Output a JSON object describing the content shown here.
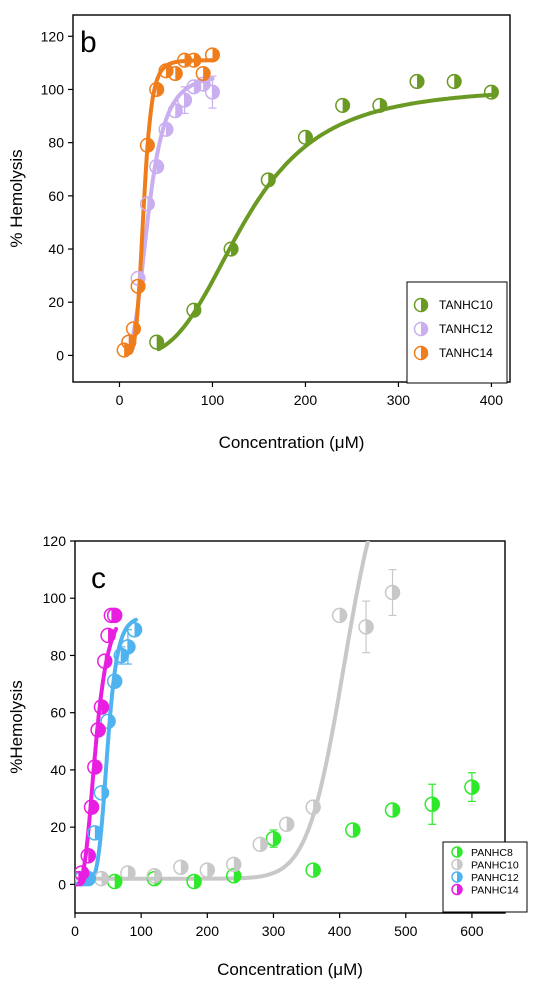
{
  "chart_data": [
    {
      "type": "scatter",
      "panel_label": "b",
      "xlabel": "Concentration (μM)",
      "ylabel": "% Hemolysis",
      "xlim": [
        -50,
        420
      ],
      "ylim": [
        -10,
        128
      ],
      "xticks": [
        0,
        100,
        200,
        300,
        400
      ],
      "yticks": [
        0,
        20,
        40,
        60,
        80,
        100,
        120
      ],
      "legend_position": "right-middle",
      "series": [
        {
          "name": "TANHC10",
          "color": "#6a9a24",
          "points": [
            [
              40,
              5
            ],
            [
              80,
              17
            ],
            [
              120,
              40
            ],
            [
              160,
              66
            ],
            [
              200,
              82
            ],
            [
              240,
              94
            ],
            [
              280,
              94
            ],
            [
              320,
              103
            ],
            [
              360,
              103
            ],
            [
              400,
              99
            ]
          ],
          "fit": {
            "x0": 42,
            "x1": 400,
            "bottom": 0,
            "top": 101,
            "ec50": 135,
            "hill": 3.2
          }
        },
        {
          "name": "TANHC12",
          "color": "#c9aef0",
          "points": [
            [
              10,
              5
            ],
            [
              20,
              29
            ],
            [
              30,
              57
            ],
            [
              40,
              71
            ],
            [
              50,
              85
            ],
            [
              60,
              92
            ],
            [
              70,
              96
            ],
            [
              80,
              101
            ],
            [
              90,
              102
            ],
            [
              100,
              99
            ]
          ],
          "error": [
            0,
            0,
            0,
            0,
            0,
            0,
            5,
            0,
            0,
            6
          ],
          "fit": {
            "x0": 10,
            "x1": 100,
            "bottom": 0,
            "top": 106,
            "ec50": 31,
            "hill": 3.4
          }
        },
        {
          "name": "TANHC14",
          "color": "#f07d1c",
          "points": [
            [
              5,
              2
            ],
            [
              10,
              5
            ],
            [
              15,
              10
            ],
            [
              20,
              26
            ],
            [
              30,
              79
            ],
            [
              40,
              100
            ],
            [
              50,
              107
            ],
            [
              60,
              106
            ],
            [
              70,
              111
            ],
            [
              80,
              111
            ],
            [
              90,
              106
            ],
            [
              100,
              113
            ]
          ],
          "fit": {
            "x0": 12,
            "x1": 100,
            "bottom": 0,
            "top": 111,
            "ec50": 26,
            "hill": 6
          }
        }
      ]
    },
    {
      "type": "scatter",
      "panel_label": "c",
      "xlabel": "Concentration (μM)",
      "ylabel": "%Hemolysis",
      "xlim": [
        0,
        650
      ],
      "ylim": [
        -10,
        120
      ],
      "xticks": [
        0,
        100,
        200,
        300,
        400,
        500,
        600
      ],
      "yticks": [
        0,
        20,
        40,
        60,
        80,
        100,
        120
      ],
      "legend_position": "bottom-right",
      "series": [
        {
          "name": "PANHC8",
          "color": "#2ee82a",
          "points": [
            [
              60,
              1
            ],
            [
              120,
              2
            ],
            [
              180,
              1
            ],
            [
              240,
              3
            ],
            [
              300,
              16
            ],
            [
              360,
              5
            ],
            [
              420,
              19
            ],
            [
              480,
              26
            ],
            [
              540,
              28
            ],
            [
              600,
              34
            ]
          ],
          "error": [
            0,
            0,
            0,
            0,
            3,
            0,
            0,
            0,
            7,
            5
          ]
        },
        {
          "name": "PANHC10",
          "color": "#c8c8c8",
          "points": [
            [
              40,
              2
            ],
            [
              80,
              4
            ],
            [
              120,
              3
            ],
            [
              160,
              6
            ],
            [
              200,
              5
            ],
            [
              240,
              7
            ],
            [
              280,
              14
            ],
            [
              320,
              21
            ],
            [
              360,
              27
            ],
            [
              400,
              94
            ],
            [
              440,
              90
            ],
            [
              480,
              102
            ]
          ],
          "error": [
            0,
            0,
            0,
            0,
            0,
            0,
            0,
            0,
            0,
            0,
            9,
            8
          ],
          "fit": {
            "x0": 0,
            "x1": 478,
            "bottom": 2,
            "top": 160,
            "ec50": 410,
            "hill": 14
          }
        },
        {
          "name": "PANHC12",
          "color": "#4fb3ef",
          "points": [
            [
              10,
              2
            ],
            [
              20,
              2
            ],
            [
              30,
              18
            ],
            [
              40,
              32
            ],
            [
              50,
              57
            ],
            [
              60,
              71
            ],
            [
              70,
              80
            ],
            [
              80,
              83
            ],
            [
              90,
              89
            ]
          ],
          "error": [
            0,
            0,
            0,
            0,
            0,
            0,
            3,
            6,
            0
          ],
          "fit": {
            "x0": 10,
            "x1": 92,
            "bottom": 0,
            "top": 94,
            "ec50": 49,
            "hill": 6.5
          }
        },
        {
          "name": "PANHC14",
          "color": "#e81ee0",
          "points": [
            [
              5,
              2
            ],
            [
              10,
              4
            ],
            [
              20,
              10
            ],
            [
              25,
              27
            ],
            [
              30,
              41
            ],
            [
              35,
              54
            ],
            [
              40,
              62
            ],
            [
              45,
              78
            ],
            [
              50,
              87
            ],
            [
              55,
              94
            ],
            [
              60,
              94
            ]
          ],
          "fit": {
            "x0": 0,
            "x1": 62,
            "bottom": 0,
            "top": 100,
            "ec50": 32,
            "hill": 3.2
          }
        }
      ]
    }
  ]
}
